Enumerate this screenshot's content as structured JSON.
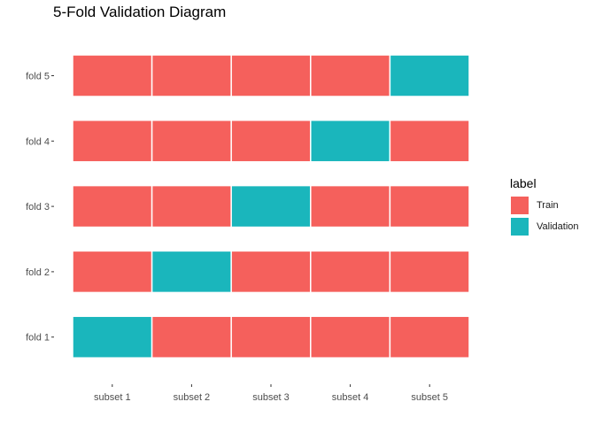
{
  "chart_data": {
    "type": "heatmap",
    "title": "5-Fold Validation Diagram",
    "xlabel": "",
    "ylabel": "",
    "x_categories": [
      "subset 1",
      "subset 2",
      "subset 3",
      "subset 4",
      "subset 5"
    ],
    "y_categories": [
      "fold 1",
      "fold 2",
      "fold 3",
      "fold 4",
      "fold 5"
    ],
    "cells": [
      [
        "Validation",
        "Train",
        "Train",
        "Train",
        "Train"
      ],
      [
        "Train",
        "Validation",
        "Train",
        "Train",
        "Train"
      ],
      [
        "Train",
        "Train",
        "Validation",
        "Train",
        "Train"
      ],
      [
        "Train",
        "Train",
        "Train",
        "Validation",
        "Train"
      ],
      [
        "Train",
        "Train",
        "Train",
        "Train",
        "Validation"
      ]
    ],
    "grid": false,
    "legend": {
      "title": "label",
      "placement": "right",
      "entries": [
        {
          "label": "Train",
          "color": "#F8766D"
        },
        {
          "label": "Validation",
          "color": "#00BFC4"
        }
      ]
    }
  },
  "colors": {
    "train": "#F5605C",
    "validation": "#1AB6BC",
    "cell_border": "#ffffff",
    "tick": "#333333"
  }
}
